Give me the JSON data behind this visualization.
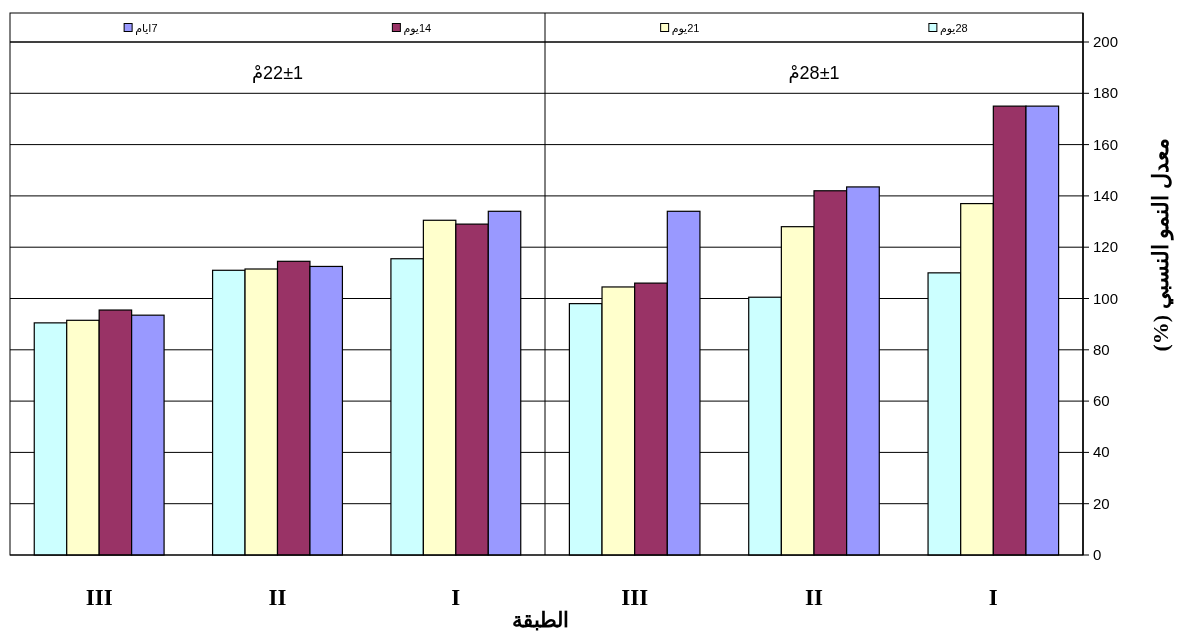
{
  "chart_data": [
    {
      "type": "bar",
      "title": "22±1مْ",
      "categories": [
        "III",
        "II",
        "I"
      ],
      "xlabel": "الطبقة",
      "series": [
        {
          "name": "28يوم",
          "color": "#ccffff",
          "values": [
            90.5,
            111,
            115.5
          ]
        },
        {
          "name": "21يوم",
          "color": "#ffffcc",
          "values": [
            91.5,
            111.5,
            130.5
          ]
        },
        {
          "name": "14يوم",
          "color": "#993366",
          "values": [
            95.5,
            114.5,
            129
          ]
        },
        {
          "name": "7ايام",
          "color": "#9999ff",
          "values": [
            93.5,
            112.5,
            134
          ]
        }
      ],
      "ylim": [
        0,
        200
      ],
      "yticks": [
        0,
        20,
        40,
        60,
        80,
        100,
        120,
        140,
        160,
        180,
        200
      ],
      "grid": "y",
      "legend": "top",
      "tick_labels": "x"
    },
    {
      "type": "bar",
      "title": "28±1مْ",
      "categories": [
        "III",
        "II",
        "I"
      ],
      "ylabel": "معدل النمو النسبي (%)",
      "series": [
        {
          "color": "#ccffff",
          "values": [
            98,
            100.5,
            110
          ]
        },
        {
          "color": "#ffffcc",
          "values": [
            104.5,
            128,
            137
          ]
        },
        {
          "color": "#993366",
          "values": [
            106,
            142,
            175
          ]
        },
        {
          "color": "#9999ff",
          "values": [
            134,
            143.5,
            175
          ]
        }
      ],
      "ylim": [
        0,
        200
      ],
      "yticks": [
        0,
        20,
        40,
        60,
        80,
        100,
        120,
        140,
        160,
        180,
        200
      ],
      "grid": "y"
    }
  ]
}
